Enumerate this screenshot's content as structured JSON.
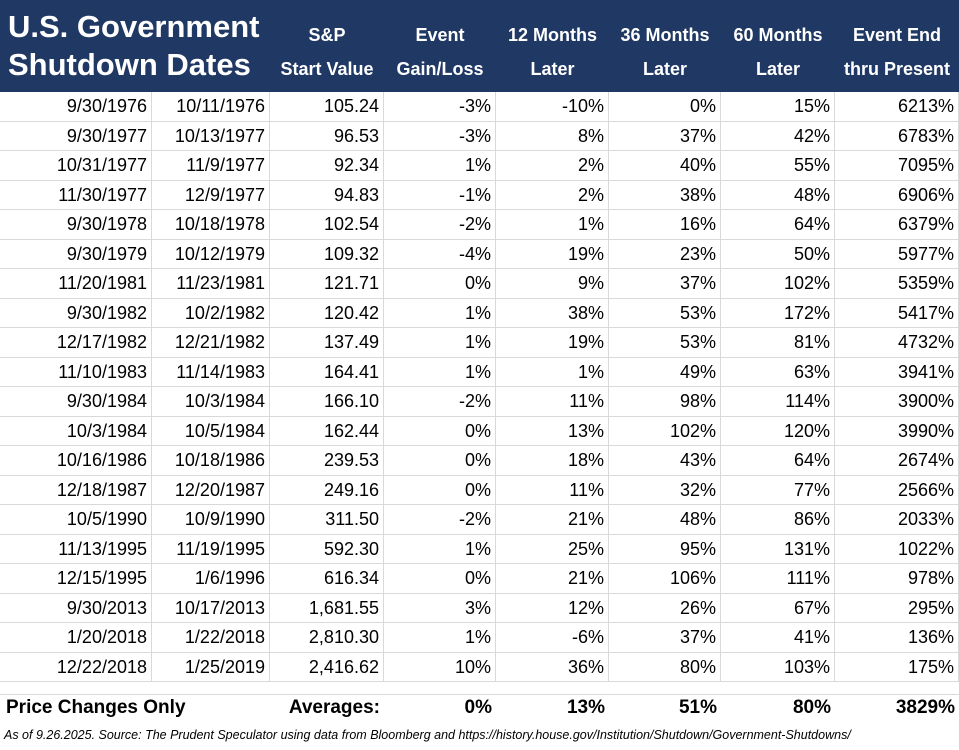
{
  "title_lines": [
    "U.S. Government",
    "Shutdown Dates"
  ],
  "headers": [
    {
      "line1": "S&P",
      "line2": "Start Value"
    },
    {
      "line1": "Event",
      "line2": "Gain/Loss"
    },
    {
      "line1": "12 Months",
      "line2": "Later"
    },
    {
      "line1": "36 Months",
      "line2": "Later"
    },
    {
      "line1": "60 Months",
      "line2": "Later"
    },
    {
      "line1": "Event End",
      "line2": "thru Present"
    }
  ],
  "rows": [
    [
      "9/30/1976",
      "10/11/1976",
      "105.24",
      "-3%",
      "-10%",
      "0%",
      "15%",
      "6213%"
    ],
    [
      "9/30/1977",
      "10/13/1977",
      "96.53",
      "-3%",
      "8%",
      "37%",
      "42%",
      "6783%"
    ],
    [
      "10/31/1977",
      "11/9/1977",
      "92.34",
      "1%",
      "2%",
      "40%",
      "55%",
      "7095%"
    ],
    [
      "11/30/1977",
      "12/9/1977",
      "94.83",
      "-1%",
      "2%",
      "38%",
      "48%",
      "6906%"
    ],
    [
      "9/30/1978",
      "10/18/1978",
      "102.54",
      "-2%",
      "1%",
      "16%",
      "64%",
      "6379%"
    ],
    [
      "9/30/1979",
      "10/12/1979",
      "109.32",
      "-4%",
      "19%",
      "23%",
      "50%",
      "5977%"
    ],
    [
      "11/20/1981",
      "11/23/1981",
      "121.71",
      "0%",
      "9%",
      "37%",
      "102%",
      "5359%"
    ],
    [
      "9/30/1982",
      "10/2/1982",
      "120.42",
      "1%",
      "38%",
      "53%",
      "172%",
      "5417%"
    ],
    [
      "12/17/1982",
      "12/21/1982",
      "137.49",
      "1%",
      "19%",
      "53%",
      "81%",
      "4732%"
    ],
    [
      "11/10/1983",
      "11/14/1983",
      "164.41",
      "1%",
      "1%",
      "49%",
      "63%",
      "3941%"
    ],
    [
      "9/30/1984",
      "10/3/1984",
      "166.10",
      "-2%",
      "11%",
      "98%",
      "114%",
      "3900%"
    ],
    [
      "10/3/1984",
      "10/5/1984",
      "162.44",
      "0%",
      "13%",
      "102%",
      "120%",
      "3990%"
    ],
    [
      "10/16/1986",
      "10/18/1986",
      "239.53",
      "0%",
      "18%",
      "43%",
      "64%",
      "2674%"
    ],
    [
      "12/18/1987",
      "12/20/1987",
      "249.16",
      "0%",
      "11%",
      "32%",
      "77%",
      "2566%"
    ],
    [
      "10/5/1990",
      "10/9/1990",
      "311.50",
      "-2%",
      "21%",
      "48%",
      "86%",
      "2033%"
    ],
    [
      "11/13/1995",
      "11/19/1995",
      "592.30",
      "1%",
      "25%",
      "95%",
      "131%",
      "1022%"
    ],
    [
      "12/15/1995",
      "1/6/1996",
      "616.34",
      "0%",
      "21%",
      "106%",
      "111%",
      "978%"
    ],
    [
      "9/30/2013",
      "10/17/2013",
      "1,681.55",
      "3%",
      "12%",
      "26%",
      "67%",
      "295%"
    ],
    [
      "1/20/2018",
      "1/22/2018",
      "2,810.30",
      "1%",
      "-6%",
      "37%",
      "41%",
      "136%"
    ],
    [
      "12/22/2018",
      "1/25/2019",
      "2,416.62",
      "10%",
      "36%",
      "80%",
      "103%",
      "175%"
    ]
  ],
  "summary": {
    "label": "Price Changes Only",
    "averages_label": "Averages:",
    "event": "0%",
    "m12": "13%",
    "m36": "51%",
    "m60": "80%",
    "present": "3829%"
  },
  "footnote": "As of 9.26.2025. Source: The Prudent Speculator using data from Bloomberg and https://history.house.gov/Institution/Shutdown/Government-Shutdowns/"
}
